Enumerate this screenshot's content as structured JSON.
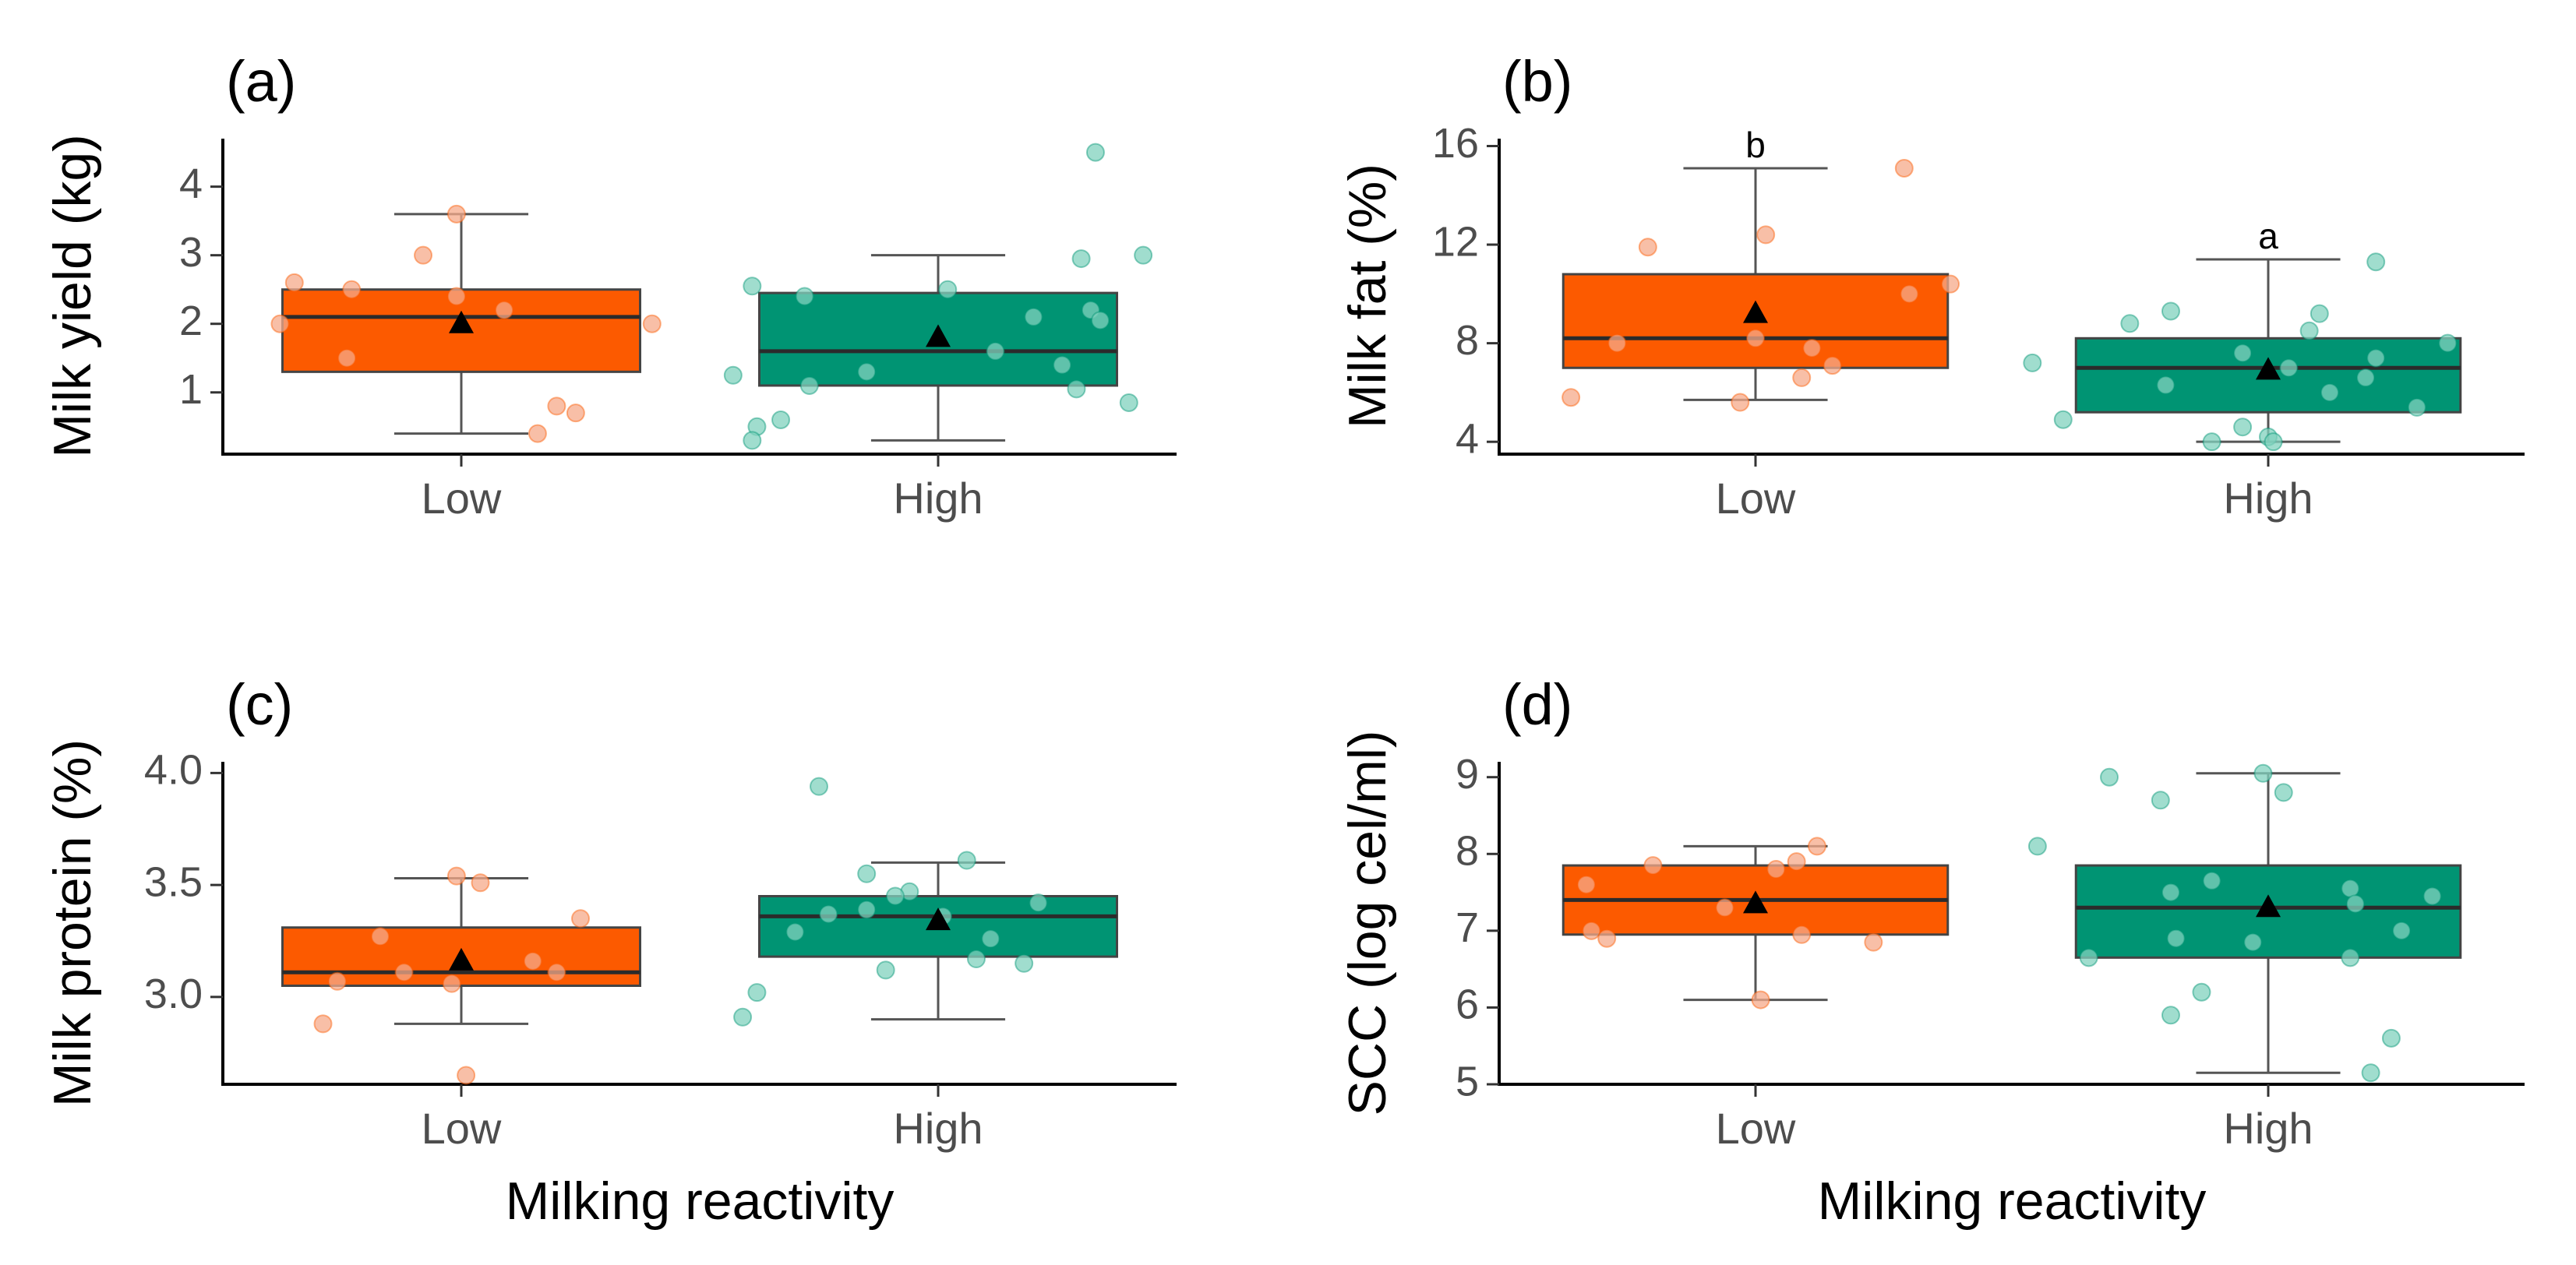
{
  "chart_data": [
    {
      "type": "box",
      "panel": "(a)",
      "ylabel": "Milk yield (kg)",
      "xlabel": "",
      "ylim": [
        0.1,
        4.7
      ],
      "yticks": [
        1,
        2,
        3,
        4
      ],
      "categories": [
        "Low",
        "High"
      ],
      "groups": [
        {
          "name": "Low",
          "color": "#fc5a00",
          "point_color": "#f6a98a",
          "whisker_low": 0.4,
          "q1": 1.3,
          "median": 2.1,
          "q3": 2.5,
          "whisker_high": 3.6,
          "mean": 2.0,
          "letter": "",
          "points": [
            {
              "y": 2.6,
              "j": -0.35
            },
            {
              "y": 2.5,
              "j": -0.23
            },
            {
              "y": 2.0,
              "j": -0.38
            },
            {
              "y": 1.5,
              "j": -0.24
            },
            {
              "y": 3.6,
              "j": -0.01
            },
            {
              "y": 3.0,
              "j": -0.08
            },
            {
              "y": 2.4,
              "j": -0.01
            },
            {
              "y": 2.2,
              "j": 0.09
            },
            {
              "y": 2.0,
              "j": 0.4
            },
            {
              "y": 0.8,
              "j": 0.2
            },
            {
              "y": 0.7,
              "j": 0.24
            },
            {
              "y": 0.4,
              "j": 0.16
            }
          ]
        },
        {
          "name": "High",
          "color": "#009473",
          "point_color": "#80d1bd",
          "whisker_low": 0.3,
          "q1": 1.1,
          "median": 1.6,
          "q3": 2.45,
          "whisker_high": 3.0,
          "mean": 1.8,
          "letter": "",
          "points": [
            {
              "y": 4.5,
              "j": 0.33
            },
            {
              "y": 3.0,
              "j": 0.43
            },
            {
              "y": 2.95,
              "j": 0.3
            },
            {
              "y": 2.55,
              "j": -0.39
            },
            {
              "y": 2.5,
              "j": 0.02
            },
            {
              "y": 2.4,
              "j": -0.28
            },
            {
              "y": 2.2,
              "j": 0.32
            },
            {
              "y": 2.1,
              "j": 0.2
            },
            {
              "y": 2.05,
              "j": 0.34
            },
            {
              "y": 1.6,
              "j": 0.12
            },
            {
              "y": 1.4,
              "j": 0.26
            },
            {
              "y": 1.3,
              "j": -0.15
            },
            {
              "y": 1.25,
              "j": -0.43
            },
            {
              "y": 1.1,
              "j": -0.27
            },
            {
              "y": 1.05,
              "j": 0.29
            },
            {
              "y": 0.85,
              "j": 0.4
            },
            {
              "y": 0.6,
              "j": -0.33
            },
            {
              "y": 0.5,
              "j": -0.38
            },
            {
              "y": 0.3,
              "j": -0.39
            }
          ]
        }
      ]
    },
    {
      "type": "box",
      "panel": "(b)",
      "ylabel": "Milk fat (%)",
      "xlabel": "",
      "ylim": [
        3.5,
        16.3
      ],
      "yticks": [
        4,
        8,
        12,
        16
      ],
      "categories": [
        "Low",
        "High"
      ],
      "groups": [
        {
          "name": "Low",
          "color": "#fc5a00",
          "point_color": "#f6a98a",
          "whisker_low": 5.7,
          "q1": 7.0,
          "median": 8.2,
          "q3": 10.8,
          "whisker_high": 15.1,
          "mean": 9.2,
          "letter": "b",
          "points": [
            {
              "y": 15.1,
              "j": 0.29
            },
            {
              "y": 12.4,
              "j": 0.02
            },
            {
              "y": 11.9,
              "j": -0.21
            },
            {
              "y": 10.4,
              "j": 0.38
            },
            {
              "y": 10.0,
              "j": 0.3
            },
            {
              "y": 8.2,
              "j": 0.0
            },
            {
              "y": 8.0,
              "j": -0.27
            },
            {
              "y": 7.8,
              "j": 0.11
            },
            {
              "y": 7.1,
              "j": 0.15
            },
            {
              "y": 6.6,
              "j": 0.09
            },
            {
              "y": 5.8,
              "j": -0.36
            },
            {
              "y": 5.6,
              "j": -0.03
            }
          ]
        },
        {
          "name": "High",
          "color": "#009473",
          "point_color": "#80d1bd",
          "whisker_low": 4.0,
          "q1": 5.2,
          "median": 7.0,
          "q3": 8.2,
          "whisker_high": 11.4,
          "mean": 6.9,
          "letter": "a",
          "points": [
            {
              "y": 11.3,
              "j": 0.21
            },
            {
              "y": 9.3,
              "j": -0.19
            },
            {
              "y": 9.2,
              "j": 0.1
            },
            {
              "y": 8.8,
              "j": -0.27
            },
            {
              "y": 8.5,
              "j": 0.08
            },
            {
              "y": 8.0,
              "j": 0.35
            },
            {
              "y": 7.6,
              "j": -0.05
            },
            {
              "y": 7.4,
              "j": 0.21
            },
            {
              "y": 7.2,
              "j": -0.46
            },
            {
              "y": 7.0,
              "j": 0.04
            },
            {
              "y": 6.6,
              "j": 0.19
            },
            {
              "y": 6.3,
              "j": -0.2
            },
            {
              "y": 6.0,
              "j": 0.12
            },
            {
              "y": 5.4,
              "j": 0.29
            },
            {
              "y": 4.9,
              "j": -0.4
            },
            {
              "y": 4.6,
              "j": -0.05
            },
            {
              "y": 4.2,
              "j": 0.0
            },
            {
              "y": 4.0,
              "j": -0.11
            },
            {
              "y": 4.0,
              "j": 0.01
            }
          ]
        }
      ]
    },
    {
      "type": "box",
      "panel": "(c)",
      "ylabel": "Milk protein (%)",
      "xlabel": "Milking reactivity",
      "ylim": [
        2.61,
        4.05
      ],
      "yticks": [
        "3.0",
        "3.5",
        "4.0"
      ],
      "categories": [
        "Low",
        "High"
      ],
      "groups": [
        {
          "name": "Low",
          "color": "#fc5a00",
          "point_color": "#f6a98a",
          "whisker_low": 2.88,
          "q1": 3.05,
          "median": 3.11,
          "q3": 3.31,
          "whisker_high": 3.53,
          "mean": 3.16,
          "letter": "",
          "points": [
            {
              "y": 3.54,
              "j": -0.01
            },
            {
              "y": 3.51,
              "j": 0.04
            },
            {
              "y": 3.35,
              "j": 0.25
            },
            {
              "y": 3.27,
              "j": -0.17
            },
            {
              "y": 3.16,
              "j": 0.15
            },
            {
              "y": 3.11,
              "j": -0.12
            },
            {
              "y": 3.11,
              "j": 0.2
            },
            {
              "y": 3.07,
              "j": -0.26
            },
            {
              "y": 3.06,
              "j": -0.02
            },
            {
              "y": 2.88,
              "j": -0.29
            },
            {
              "y": 2.65,
              "j": 0.01
            }
          ]
        },
        {
          "name": "High",
          "color": "#009473",
          "point_color": "#80d1bd",
          "whisker_low": 2.9,
          "q1": 3.18,
          "median": 3.36,
          "q3": 3.45,
          "whisker_high": 3.6,
          "mean": 3.34,
          "letter": "",
          "points": [
            {
              "y": 3.94,
              "j": -0.25
            },
            {
              "y": 3.61,
              "j": 0.06
            },
            {
              "y": 3.55,
              "j": -0.15
            },
            {
              "y": 3.47,
              "j": -0.06
            },
            {
              "y": 3.45,
              "j": -0.09
            },
            {
              "y": 3.42,
              "j": 0.21
            },
            {
              "y": 3.39,
              "j": -0.15
            },
            {
              "y": 3.37,
              "j": -0.23
            },
            {
              "y": 3.36,
              "j": 0.01
            },
            {
              "y": 3.29,
              "j": -0.3
            },
            {
              "y": 3.26,
              "j": 0.11
            },
            {
              "y": 3.17,
              "j": 0.08
            },
            {
              "y": 3.15,
              "j": 0.18
            },
            {
              "y": 3.12,
              "j": -0.11
            },
            {
              "y": 3.02,
              "j": -0.38
            },
            {
              "y": 2.91,
              "j": -0.41
            }
          ]
        }
      ]
    },
    {
      "type": "box",
      "panel": "(d)",
      "ylabel": "SCC (log cel/ml)",
      "xlabel": "Milking reactivity",
      "ylim": [
        5.0,
        9.2
      ],
      "yticks": [
        5,
        6,
        7,
        8,
        9
      ],
      "categories": [
        "Low",
        "High"
      ],
      "groups": [
        {
          "name": "Low",
          "color": "#fc5a00",
          "point_color": "#f6a98a",
          "whisker_low": 6.1,
          "q1": 6.95,
          "median": 7.4,
          "q3": 7.85,
          "whisker_high": 8.1,
          "mean": 7.35,
          "letter": "",
          "points": [
            {
              "y": 8.1,
              "j": 0.12
            },
            {
              "y": 7.9,
              "j": 0.08
            },
            {
              "y": 7.85,
              "j": -0.2
            },
            {
              "y": 7.8,
              "j": 0.04
            },
            {
              "y": 7.6,
              "j": -0.33
            },
            {
              "y": 7.3,
              "j": -0.06
            },
            {
              "y": 7.0,
              "j": -0.32
            },
            {
              "y": 6.95,
              "j": 0.09
            },
            {
              "y": 6.9,
              "j": -0.29
            },
            {
              "y": 6.85,
              "j": 0.23
            },
            {
              "y": 6.1,
              "j": 0.01
            }
          ]
        },
        {
          "name": "High",
          "color": "#009473",
          "point_color": "#80d1bd",
          "whisker_low": 5.15,
          "q1": 6.65,
          "median": 7.3,
          "q3": 7.85,
          "whisker_high": 9.05,
          "mean": 7.3,
          "letter": "",
          "points": [
            {
              "y": 9.05,
              "j": -0.01
            },
            {
              "y": 9.0,
              "j": -0.31
            },
            {
              "y": 8.8,
              "j": 0.03
            },
            {
              "y": 8.7,
              "j": -0.21
            },
            {
              "y": 8.1,
              "j": -0.45
            },
            {
              "y": 7.65,
              "j": -0.11
            },
            {
              "y": 7.55,
              "j": 0.16
            },
            {
              "y": 7.5,
              "j": -0.19
            },
            {
              "y": 7.45,
              "j": 0.32
            },
            {
              "y": 7.35,
              "j": 0.17
            },
            {
              "y": 7.0,
              "j": 0.26
            },
            {
              "y": 6.9,
              "j": -0.18
            },
            {
              "y": 6.85,
              "j": -0.03
            },
            {
              "y": 6.65,
              "j": -0.35
            },
            {
              "y": 6.65,
              "j": 0.16
            },
            {
              "y": 6.2,
              "j": -0.13
            },
            {
              "y": 5.9,
              "j": -0.19
            },
            {
              "y": 5.6,
              "j": 0.24
            },
            {
              "y": 5.15,
              "j": 0.2
            }
          ]
        }
      ]
    }
  ]
}
